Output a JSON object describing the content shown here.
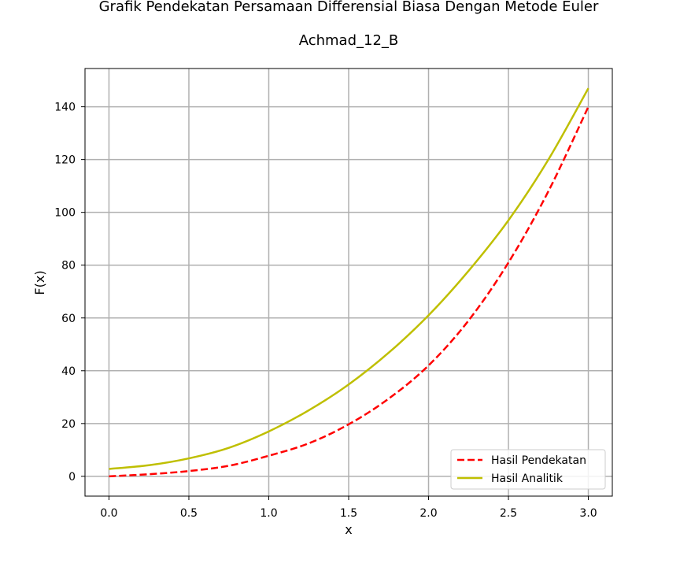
{
  "chart_data": {
    "type": "line",
    "title": "Grafik Pendekatan Persamaan Differensial Biasa Dengan Metode Euler",
    "subtitle": "Achmad_12_B",
    "xlabel": "x",
    "ylabel": "F(x)",
    "xlim": [
      -0.15,
      3.15
    ],
    "ylim": [
      -7.5,
      154.5
    ],
    "xticks": [
      0.0,
      0.5,
      1.0,
      1.5,
      2.0,
      2.5,
      3.0
    ],
    "xtick_labels": [
      "0.0",
      "0.5",
      "1.0",
      "1.5",
      "2.0",
      "2.5",
      "3.0"
    ],
    "yticks": [
      0,
      20,
      40,
      60,
      80,
      100,
      120,
      140
    ],
    "ytick_labels": [
      "0",
      "20",
      "40",
      "60",
      "80",
      "100",
      "120",
      "140"
    ],
    "grid": true,
    "legend_position": "lower right",
    "series": [
      {
        "name": "Hasil Pendekatan",
        "color": "#ff0000",
        "style": "dashed",
        "x": [
          0.0,
          0.25,
          0.5,
          0.75,
          1.0,
          1.25,
          1.5,
          1.75,
          2.0,
          2.25,
          2.5,
          2.75,
          3.0
        ],
        "y": [
          0.0,
          0.8,
          2.0,
          4.0,
          7.8,
          12.5,
          19.7,
          29.4,
          42.0,
          59.0,
          81.0,
          108.0,
          140.0
        ]
      },
      {
        "name": "Hasil Analitik",
        "color": "#bfbf00",
        "style": "solid",
        "x": [
          0.0,
          0.25,
          0.5,
          0.75,
          1.0,
          1.25,
          1.5,
          1.75,
          2.0,
          2.25,
          2.5,
          2.75,
          3.0
        ],
        "y": [
          2.8,
          4.2,
          6.8,
          10.8,
          17.0,
          25.0,
          34.8,
          46.8,
          61.0,
          77.8,
          97.0,
          120.0,
          147.0
        ]
      }
    ]
  }
}
